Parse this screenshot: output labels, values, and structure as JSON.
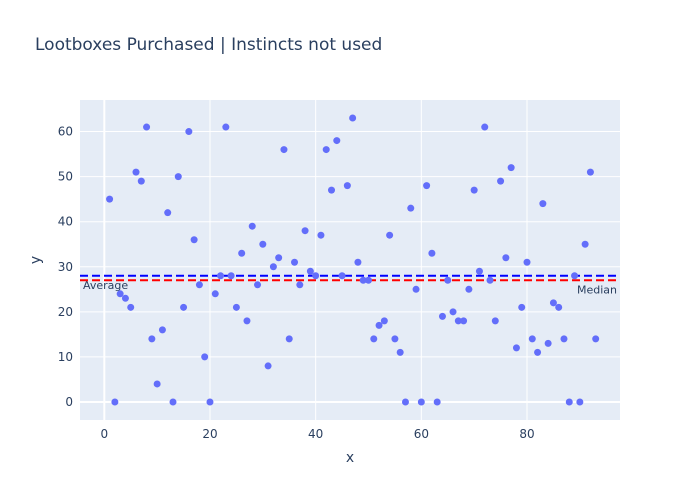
{
  "chart_data": {
    "type": "scatter",
    "title": "Lootboxes Purchased | Instincts not used",
    "xlabel": "x",
    "ylabel": "y",
    "xlim": [
      -4.6,
      97.6
    ],
    "ylim": [
      -4,
      67
    ],
    "xticks": [
      0,
      20,
      40,
      60,
      80
    ],
    "yticks": [
      0,
      10,
      20,
      30,
      40,
      50,
      60
    ],
    "grid": true,
    "colors": {
      "background": "#e5ecf6",
      "grid": "#ffffff",
      "marker": "#636efa",
      "average_line": "#0000ff",
      "median_line": "#ff0000"
    },
    "series": [
      {
        "x": [
          1,
          2,
          3,
          4,
          5,
          6,
          7,
          8,
          9,
          10,
          11,
          12,
          13,
          14,
          15,
          16,
          17,
          18,
          19,
          20,
          21,
          22,
          23,
          24,
          25,
          26,
          27,
          28,
          29,
          30,
          31,
          32,
          33,
          34,
          35,
          36,
          37,
          38,
          39,
          40,
          41,
          42,
          43,
          44,
          45,
          46,
          47,
          48,
          49,
          50,
          51,
          52,
          53,
          54,
          55,
          56,
          57,
          58,
          59,
          60,
          61,
          62,
          63,
          64,
          65,
          66,
          67,
          68,
          69,
          70,
          71,
          72,
          73,
          74,
          75,
          76,
          77,
          78,
          79,
          80,
          81,
          82,
          83,
          84,
          85,
          86,
          87,
          88,
          89,
          90,
          91,
          92,
          93
        ],
        "y": [
          45,
          0,
          24,
          23,
          21,
          51,
          49,
          61,
          14,
          4,
          16,
          42,
          0,
          50,
          21,
          60,
          36,
          26,
          10,
          0,
          24,
          28,
          61,
          28,
          21,
          33,
          18,
          39,
          26,
          35,
          8,
          30,
          32,
          56,
          14,
          31,
          26,
          38,
          29,
          28,
          37,
          56,
          47,
          58,
          28,
          48,
          63,
          31,
          27,
          27,
          14,
          17,
          18,
          37,
          14,
          11,
          0,
          43,
          25,
          0,
          48,
          33,
          0,
          19,
          27,
          20,
          18,
          18,
          25,
          47,
          29,
          61,
          27,
          18,
          49,
          32,
          52,
          12,
          21,
          31,
          14,
          11,
          44,
          13,
          22,
          21,
          14,
          0,
          28,
          0,
          35,
          51,
          14
        ]
      }
    ],
    "reference_lines": [
      {
        "label": "Average",
        "value": 28,
        "style": "dashed",
        "color": "#0000ff",
        "label_position": "left"
      },
      {
        "label": "Median",
        "value": 27,
        "style": "dashed",
        "color": "#ff0000",
        "label_position": "right"
      }
    ]
  }
}
